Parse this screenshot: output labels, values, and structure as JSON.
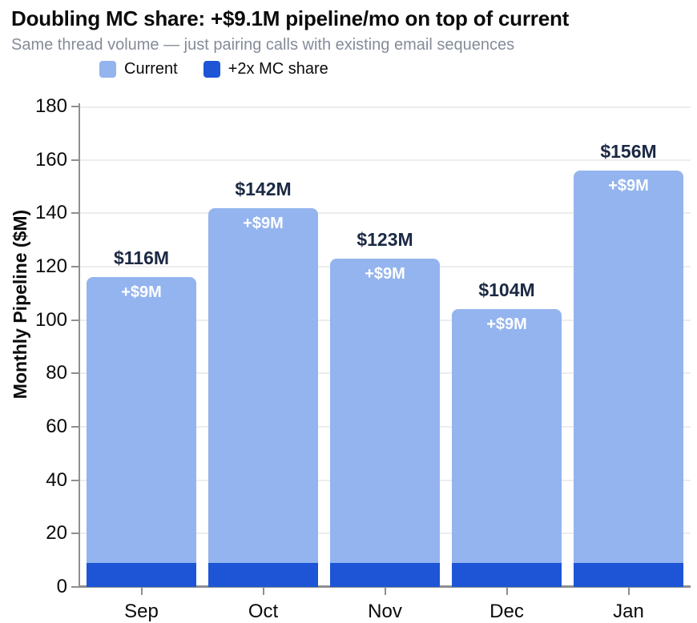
{
  "header": {
    "title": "Doubling MC share: +$9.1M pipeline/mo on top of current",
    "subtitle": "Same thread volume — just pairing calls with existing email sequences"
  },
  "legend": [
    {
      "label": "Current",
      "color": "#93b4ee"
    },
    {
      "label": "+2x MC share",
      "color": "#1d55d6"
    }
  ],
  "chart_data": {
    "type": "bar",
    "stacked": true,
    "title": "Doubling MC share: +$9.1M pipeline/mo on top of current",
    "subtitle": "Same thread volume — just pairing calls with existing email sequences",
    "categories": [
      "Sep",
      "Oct",
      "Nov",
      "Dec",
      "Jan"
    ],
    "series": [
      {
        "name": "+2x MC share",
        "color": "#1d55d6",
        "stack_position": "bottom",
        "values": [
          9.1,
          9.1,
          9.1,
          9.1,
          9.1
        ]
      },
      {
        "name": "Current",
        "color": "#93b4ee",
        "stack_position": "top",
        "values": [
          106.9,
          132.9,
          113.9,
          94.9,
          146.9
        ]
      }
    ],
    "totals": [
      116,
      142,
      123,
      104,
      156
    ],
    "total_labels": [
      "$116M",
      "$142M",
      "$123M",
      "$104M",
      "$156M"
    ],
    "segment_labels": [
      "+$9M",
      "+$9M",
      "+$9M",
      "+$9M",
      "+$9M"
    ],
    "mc_add_per_month": 9.1,
    "xlabel": "",
    "ylabel": "Monthly Pipeline ($M)",
    "ylim": [
      0,
      180
    ],
    "yticks": [
      0,
      20,
      40,
      60,
      80,
      100,
      120,
      140,
      160,
      180
    ],
    "grid": true,
    "legend_position": "top-left"
  },
  "colors": {
    "title": "#0b0b0b",
    "subtitle": "#858c99",
    "light_bar": "#93b4ee",
    "dark_bar": "#1d55d6",
    "grid": "#ededed",
    "axis": "#8f8f8f",
    "total_label": "#1b2944",
    "segment_label": "#ffffff"
  }
}
